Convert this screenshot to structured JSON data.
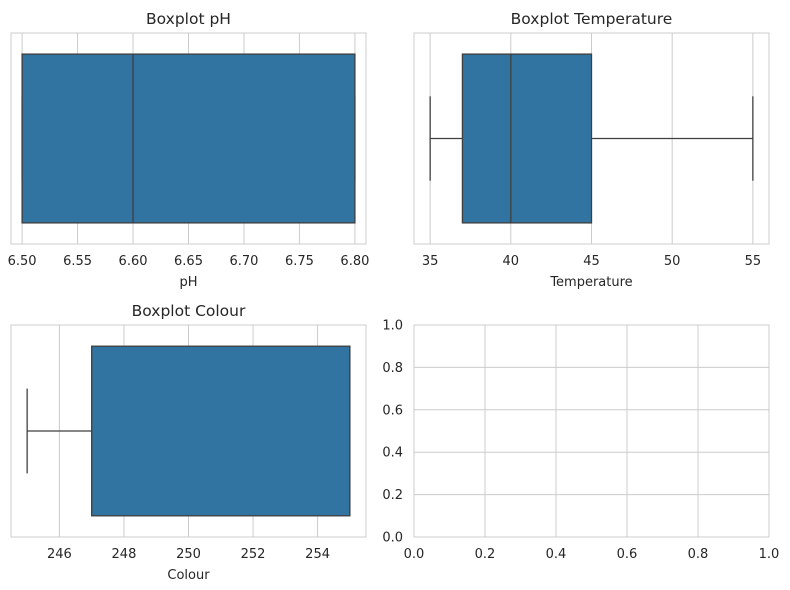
{
  "chart_data": [
    {
      "type": "boxplot",
      "title": "Boxplot pH",
      "xlabel": "pH",
      "ylabel": "",
      "xlim": [
        6.49,
        6.81
      ],
      "ticks": [
        6.5,
        6.55,
        6.6,
        6.65,
        6.7,
        6.75,
        6.8
      ],
      "tick_labels": [
        "6.50",
        "6.55",
        "6.60",
        "6.65",
        "6.70",
        "6.75",
        "6.80"
      ],
      "box": {
        "whisker_low": 6.5,
        "q1": 6.5,
        "median": 6.6,
        "q3": 6.8,
        "whisker_high": 6.8
      },
      "grid": true,
      "color": "#3274a1"
    },
    {
      "type": "boxplot",
      "title": "Boxplot Temperature",
      "xlabel": "Temperature",
      "ylabel": "",
      "xlim": [
        34,
        56
      ],
      "ticks": [
        35,
        40,
        45,
        50,
        55
      ],
      "tick_labels": [
        "35",
        "40",
        "45",
        "50",
        "55"
      ],
      "box": {
        "whisker_low": 35,
        "q1": 37,
        "median": 40,
        "q3": 45,
        "whisker_high": 55
      },
      "grid": true,
      "color": "#3274a1"
    },
    {
      "type": "boxplot",
      "title": "Boxplot Colour",
      "xlabel": "Colour",
      "ylabel": "",
      "xlim": [
        244.5,
        255.5
      ],
      "ticks": [
        246,
        248,
        250,
        252,
        254
      ],
      "tick_labels": [
        "246",
        "248",
        "250",
        "252",
        "254"
      ],
      "box": {
        "whisker_low": 245,
        "q1": 247,
        "median": 255,
        "q3": 255,
        "whisker_high": 255
      },
      "grid": true,
      "color": "#3274a1"
    },
    {
      "type": "empty",
      "title": "",
      "xlabel": "",
      "ylabel": "",
      "xlim": [
        0,
        1
      ],
      "ylim": [
        0,
        1
      ],
      "xticks": [
        0.0,
        0.2,
        0.4,
        0.6,
        0.8,
        1.0
      ],
      "xtick_labels": [
        "0.0",
        "0.2",
        "0.4",
        "0.6",
        "0.8",
        "1.0"
      ],
      "yticks": [
        0.0,
        0.2,
        0.4,
        0.6,
        0.8,
        1.0
      ],
      "ytick_labels": [
        "0.0",
        "0.2",
        "0.4",
        "0.6",
        "0.8",
        "1.0"
      ],
      "grid": true
    }
  ],
  "colors": {
    "box_fill": "#3274a1",
    "line": "#3f3f3f",
    "grid": "#cccccc",
    "spine": "#cccccc",
    "text": "#262626"
  }
}
